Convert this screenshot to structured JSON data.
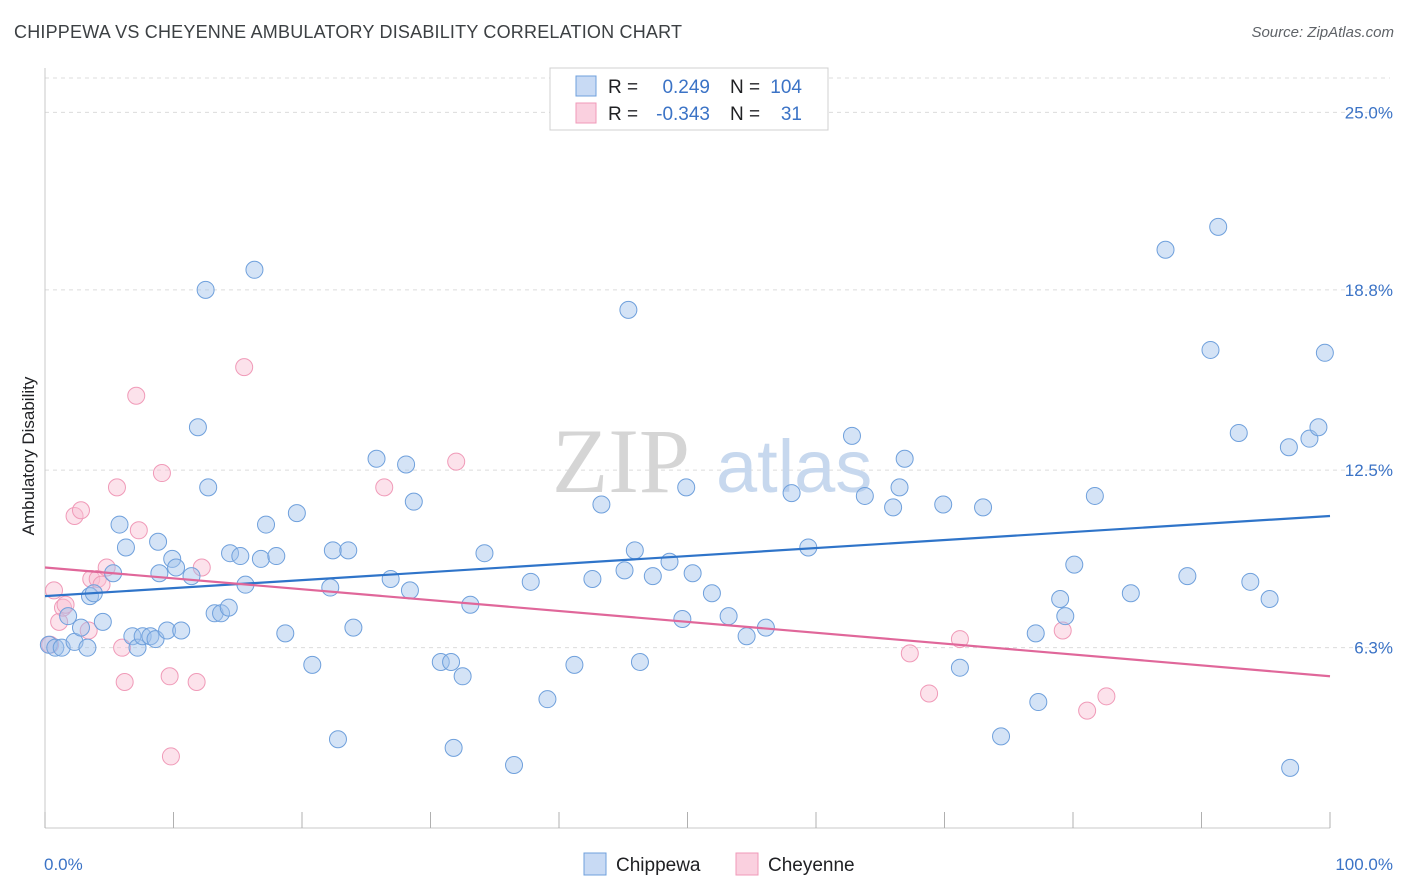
{
  "title": "CHIPPEWA VS CHEYENNE AMBULATORY DISABILITY CORRELATION CHART",
  "source": "Source: ZipAtlas.com",
  "watermark": {
    "zip": "ZIP",
    "atlas": "atlas"
  },
  "legend_top": {
    "rows": [
      {
        "r_label": "R =",
        "r_value": "0.249",
        "n_label": "N =",
        "n_value": "104",
        "color": "#6fa0dc"
      },
      {
        "r_label": "R =",
        "r_value": "-0.343",
        "n_label": "N =",
        "n_value": "31",
        "color": "#f09ab8"
      }
    ]
  },
  "legend_bottom": [
    {
      "label": "Chippewa",
      "color": "#6fa0dc"
    },
    {
      "label": "Cheyenne",
      "color": "#f09ab8"
    }
  ],
  "chart_data": {
    "type": "scatter",
    "title": "CHIPPEWA VS CHEYENNE AMBULATORY DISABILITY CORRELATION CHART",
    "xlabel": "",
    "ylabel": "Ambulatory Disability",
    "xlim": [
      0,
      100
    ],
    "ylim": [
      0,
      26.2
    ],
    "x_tick_labels": [
      "0.0%",
      "100.0%"
    ],
    "y_ticks": [
      6.3,
      12.5,
      18.8,
      25.0
    ],
    "y_tick_labels": [
      "6.3%",
      "12.5%",
      "18.8%",
      "25.0%"
    ],
    "grid": "horizontal dashed",
    "legend_position": "top-center",
    "series": [
      {
        "name": "Chippewa",
        "color": "#6fa0dc",
        "trend": [
          [
            0,
            8.1
          ],
          [
            100,
            10.9
          ]
        ],
        "points": [
          [
            0.3,
            6.4
          ],
          [
            0.8,
            6.3
          ],
          [
            1.3,
            6.3
          ],
          [
            1.8,
            7.4
          ],
          [
            2.3,
            6.5
          ],
          [
            2.8,
            7.0
          ],
          [
            3.3,
            6.3
          ],
          [
            3.5,
            8.1
          ],
          [
            3.8,
            8.2
          ],
          [
            4.5,
            7.2
          ],
          [
            5.3,
            8.9
          ],
          [
            5.8,
            10.6
          ],
          [
            6.3,
            9.8
          ],
          [
            6.8,
            6.7
          ],
          [
            7.2,
            6.3
          ],
          [
            7.6,
            6.7
          ],
          [
            8.2,
            6.7
          ],
          [
            8.6,
            6.6
          ],
          [
            8.8,
            10.0
          ],
          [
            8.9,
            8.9
          ],
          [
            9.5,
            6.9
          ],
          [
            9.9,
            9.4
          ],
          [
            10.2,
            9.1
          ],
          [
            10.6,
            6.9
          ],
          [
            11.4,
            8.8
          ],
          [
            11.9,
            14.0
          ],
          [
            12.5,
            18.8
          ],
          [
            12.7,
            11.9
          ],
          [
            13.2,
            7.5
          ],
          [
            13.7,
            7.5
          ],
          [
            14.3,
            7.7
          ],
          [
            14.4,
            9.6
          ],
          [
            15.2,
            9.5
          ],
          [
            15.6,
            8.5
          ],
          [
            16.3,
            19.5
          ],
          [
            16.8,
            9.4
          ],
          [
            17.2,
            10.6
          ],
          [
            18.0,
            9.5
          ],
          [
            18.7,
            6.8
          ],
          [
            19.6,
            11.0
          ],
          [
            20.8,
            5.7
          ],
          [
            22.2,
            8.4
          ],
          [
            22.4,
            9.7
          ],
          [
            22.8,
            3.1
          ],
          [
            23.6,
            9.7
          ],
          [
            24.0,
            7.0
          ],
          [
            25.8,
            12.9
          ],
          [
            26.9,
            8.7
          ],
          [
            28.1,
            12.7
          ],
          [
            28.4,
            8.3
          ],
          [
            28.7,
            11.4
          ],
          [
            30.8,
            5.8
          ],
          [
            31.6,
            5.8
          ],
          [
            31.8,
            2.8
          ],
          [
            32.5,
            5.3
          ],
          [
            33.1,
            7.8
          ],
          [
            34.2,
            9.6
          ],
          [
            36.5,
            2.2
          ],
          [
            37.8,
            8.6
          ],
          [
            39.1,
            4.5
          ],
          [
            41.2,
            5.7
          ],
          [
            42.6,
            8.7
          ],
          [
            43.3,
            11.3
          ],
          [
            45.1,
            9.0
          ],
          [
            45.4,
            18.1
          ],
          [
            45.9,
            9.7
          ],
          [
            46.3,
            5.8
          ],
          [
            47.3,
            8.8
          ],
          [
            48.6,
            9.3
          ],
          [
            49.6,
            7.3
          ],
          [
            49.9,
            11.9
          ],
          [
            50.4,
            8.9
          ],
          [
            51.9,
            8.2
          ],
          [
            53.2,
            7.4
          ],
          [
            54.6,
            6.7
          ],
          [
            56.1,
            7.0
          ],
          [
            58.1,
            11.7
          ],
          [
            59.4,
            9.8
          ],
          [
            62.8,
            13.7
          ],
          [
            63.8,
            11.6
          ],
          [
            66.0,
            11.2
          ],
          [
            66.5,
            11.9
          ],
          [
            66.9,
            12.9
          ],
          [
            69.9,
            11.3
          ],
          [
            71.2,
            5.6
          ],
          [
            73.0,
            11.2
          ],
          [
            74.4,
            3.2
          ],
          [
            77.1,
            6.8
          ],
          [
            77.3,
            4.4
          ],
          [
            79.0,
            8.0
          ],
          [
            79.4,
            7.4
          ],
          [
            80.1,
            9.2
          ],
          [
            81.7,
            11.6
          ],
          [
            84.5,
            8.2
          ],
          [
            87.2,
            20.2
          ],
          [
            88.9,
            8.8
          ],
          [
            90.7,
            16.7
          ],
          [
            91.3,
            21.0
          ],
          [
            92.9,
            13.8
          ],
          [
            93.8,
            8.6
          ],
          [
            95.3,
            8.0
          ],
          [
            96.8,
            13.3
          ],
          [
            96.9,
            2.1
          ],
          [
            98.4,
            13.6
          ],
          [
            99.1,
            14.0
          ],
          [
            99.6,
            16.6
          ]
        ]
      },
      {
        "name": "Cheyenne",
        "color": "#f09ab8",
        "trend": [
          [
            0,
            9.1
          ],
          [
            100,
            5.3
          ]
        ],
        "points": [
          [
            0.4,
            6.4
          ],
          [
            0.7,
            8.3
          ],
          [
            1.1,
            7.2
          ],
          [
            1.4,
            7.7
          ],
          [
            1.6,
            7.8
          ],
          [
            2.3,
            10.9
          ],
          [
            2.8,
            11.1
          ],
          [
            3.4,
            6.9
          ],
          [
            3.6,
            8.7
          ],
          [
            4.1,
            8.7
          ],
          [
            4.4,
            8.5
          ],
          [
            4.8,
            9.1
          ],
          [
            5.6,
            11.9
          ],
          [
            6.0,
            6.3
          ],
          [
            6.2,
            5.1
          ],
          [
            7.1,
            15.1
          ],
          [
            7.3,
            10.4
          ],
          [
            9.1,
            12.4
          ],
          [
            9.7,
            5.3
          ],
          [
            9.8,
            2.5
          ],
          [
            11.8,
            5.1
          ],
          [
            12.2,
            9.1
          ],
          [
            15.5,
            16.1
          ],
          [
            26.4,
            11.9
          ],
          [
            32.0,
            12.8
          ],
          [
            67.3,
            6.1
          ],
          [
            68.8,
            4.7
          ],
          [
            71.2,
            6.6
          ],
          [
            79.2,
            6.9
          ],
          [
            81.1,
            4.1
          ],
          [
            82.6,
            4.6
          ]
        ]
      }
    ]
  }
}
